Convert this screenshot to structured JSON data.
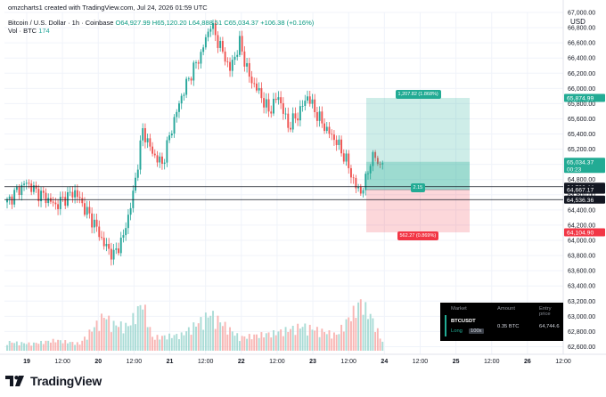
{
  "header": {
    "created": "omzcharts1 created with TradingView.com, Jul 24, 2026 01:59 UTC",
    "symbol": "Bitcoin / U.S. Dollar · 1h · Coinbase",
    "o": "O64,927.99",
    "h": "H65,120.20",
    "l": "L64,888.51",
    "c": "C65,034.37",
    "chg": "+106.38 (+0.16%)",
    "vol_label": "Vol · BTC",
    "vol_value": "174"
  },
  "axis": {
    "currency": "USD"
  },
  "brand": "TradingView",
  "position_tool": {
    "target_label": "1,207.82 (1.868%)",
    "stop_label": "562.27 (0.869%)",
    "ratio_label": "2.15"
  },
  "price_tags": [
    {
      "text": "65,874.99",
      "bg": "#22ab94",
      "fg": "#ffffff",
      "price": 65875
    },
    {
      "text": "65,034.37",
      "bg": "#22ab94",
      "fg": "#ffffff",
      "price": 65034,
      "sub": "00:23"
    },
    {
      "text": "64,706.44",
      "bg": "#131722",
      "fg": "#ffffff",
      "price": 64706
    },
    {
      "text": "64,667.17",
      "bg": "#131722",
      "fg": "#ffffff",
      "price": 64667
    },
    {
      "text": "64,536.36",
      "bg": "#131722",
      "fg": "#ffffff",
      "price": 64536
    },
    {
      "text": "64,104.90",
      "bg": "#f23645",
      "fg": "#ffffff",
      "price": 64105
    }
  ],
  "panel": {
    "headers": [
      "Market",
      "Amount",
      "Entry price"
    ],
    "symbol": "BTCUSDT",
    "side": "Long",
    "leverage": "100x",
    "amount": "0.35 BTC",
    "entry": "64,744.6"
  },
  "colors": {
    "up": "#26a69a",
    "down": "#ef5350",
    "bg": "#ffffff",
    "grid": "#f0f3fa"
  },
  "chart_data": {
    "type": "candlestick",
    "interval": "1h",
    "ylim": [
      62500,
      67000
    ],
    "y_ticks": [
      62600,
      62800,
      63000,
      63200,
      63400,
      63600,
      63800,
      64000,
      64200,
      64400,
      64600,
      64800,
      65000,
      65200,
      65400,
      65600,
      65800,
      66000,
      66200,
      66400,
      66600,
      66800,
      67000
    ],
    "y_tick_labels": [
      "62,600.00",
      "62,800.00",
      "63,000.00",
      "63,200.00",
      "63,400.00",
      "63,600.00",
      "63,800.00",
      "64,000.00",
      "64,200.00",
      "64,400.00",
      "64,600.00",
      "64,800.00",
      "65,000.00",
      "65,200.00",
      "65,400.00",
      "65,600.00",
      "65,800.00",
      "66,000.00",
      "66,200.00",
      "66,400.00",
      "66,600.00",
      "66,800.00",
      "67,000.00"
    ],
    "x_ticks": [
      "19",
      "12:00",
      "20",
      "12:00",
      "21",
      "12:00",
      "22",
      "12:00",
      "23",
      "12:00",
      "24",
      "12:00",
      "25",
      "12:00",
      "26",
      "12:00"
    ],
    "close_path": [
      [
        0,
        64500
      ],
      [
        4,
        64650
      ],
      [
        8,
        64760
      ],
      [
        12,
        64640
      ],
      [
        16,
        64560
      ],
      [
        20,
        64460
      ],
      [
        24,
        64560
      ],
      [
        28,
        64640
      ],
      [
        32,
        64420
      ],
      [
        36,
        64220
      ],
      [
        40,
        63950
      ],
      [
        44,
        63800
      ],
      [
        48,
        64050
      ],
      [
        52,
        64600
      ],
      [
        56,
        65450
      ],
      [
        60,
        65150
      ],
      [
        64,
        65000
      ],
      [
        68,
        65480
      ],
      [
        72,
        65900
      ],
      [
        76,
        66200
      ],
      [
        80,
        66450
      ],
      [
        84,
        66850
      ],
      [
        88,
        66550
      ],
      [
        92,
        66250
      ],
      [
        96,
        66600
      ],
      [
        100,
        66150
      ],
      [
        104,
        65950
      ],
      [
        108,
        65700
      ],
      [
        112,
        65900
      ],
      [
        116,
        65500
      ],
      [
        120,
        65650
      ],
      [
        124,
        65900
      ],
      [
        128,
        65650
      ],
      [
        132,
        65450
      ],
      [
        136,
        65300
      ],
      [
        140,
        65050
      ],
      [
        144,
        64700
      ],
      [
        146,
        64640
      ],
      [
        148,
        64780
      ],
      [
        150,
        65050
      ],
      [
        152,
        65100
      ],
      [
        154,
        64980
      ],
      [
        155,
        65034
      ]
    ],
    "volume_profile": [
      [
        0,
        0.1
      ],
      [
        10,
        0.08
      ],
      [
        20,
        0.12
      ],
      [
        30,
        0.08
      ],
      [
        40,
        0.4
      ],
      [
        44,
        0.3
      ],
      [
        50,
        0.28
      ],
      [
        56,
        0.55
      ],
      [
        60,
        0.15
      ],
      [
        72,
        0.18
      ],
      [
        84,
        0.42
      ],
      [
        96,
        0.15
      ],
      [
        110,
        0.2
      ],
      [
        122,
        0.28
      ],
      [
        136,
        0.18
      ],
      [
        146,
        0.55
      ],
      [
        150,
        0.4
      ],
      [
        155,
        0.1
      ]
    ],
    "position": {
      "side": "long",
      "entry": 64667,
      "target": 65875,
      "stop": 64105,
      "current": 65034
    }
  }
}
